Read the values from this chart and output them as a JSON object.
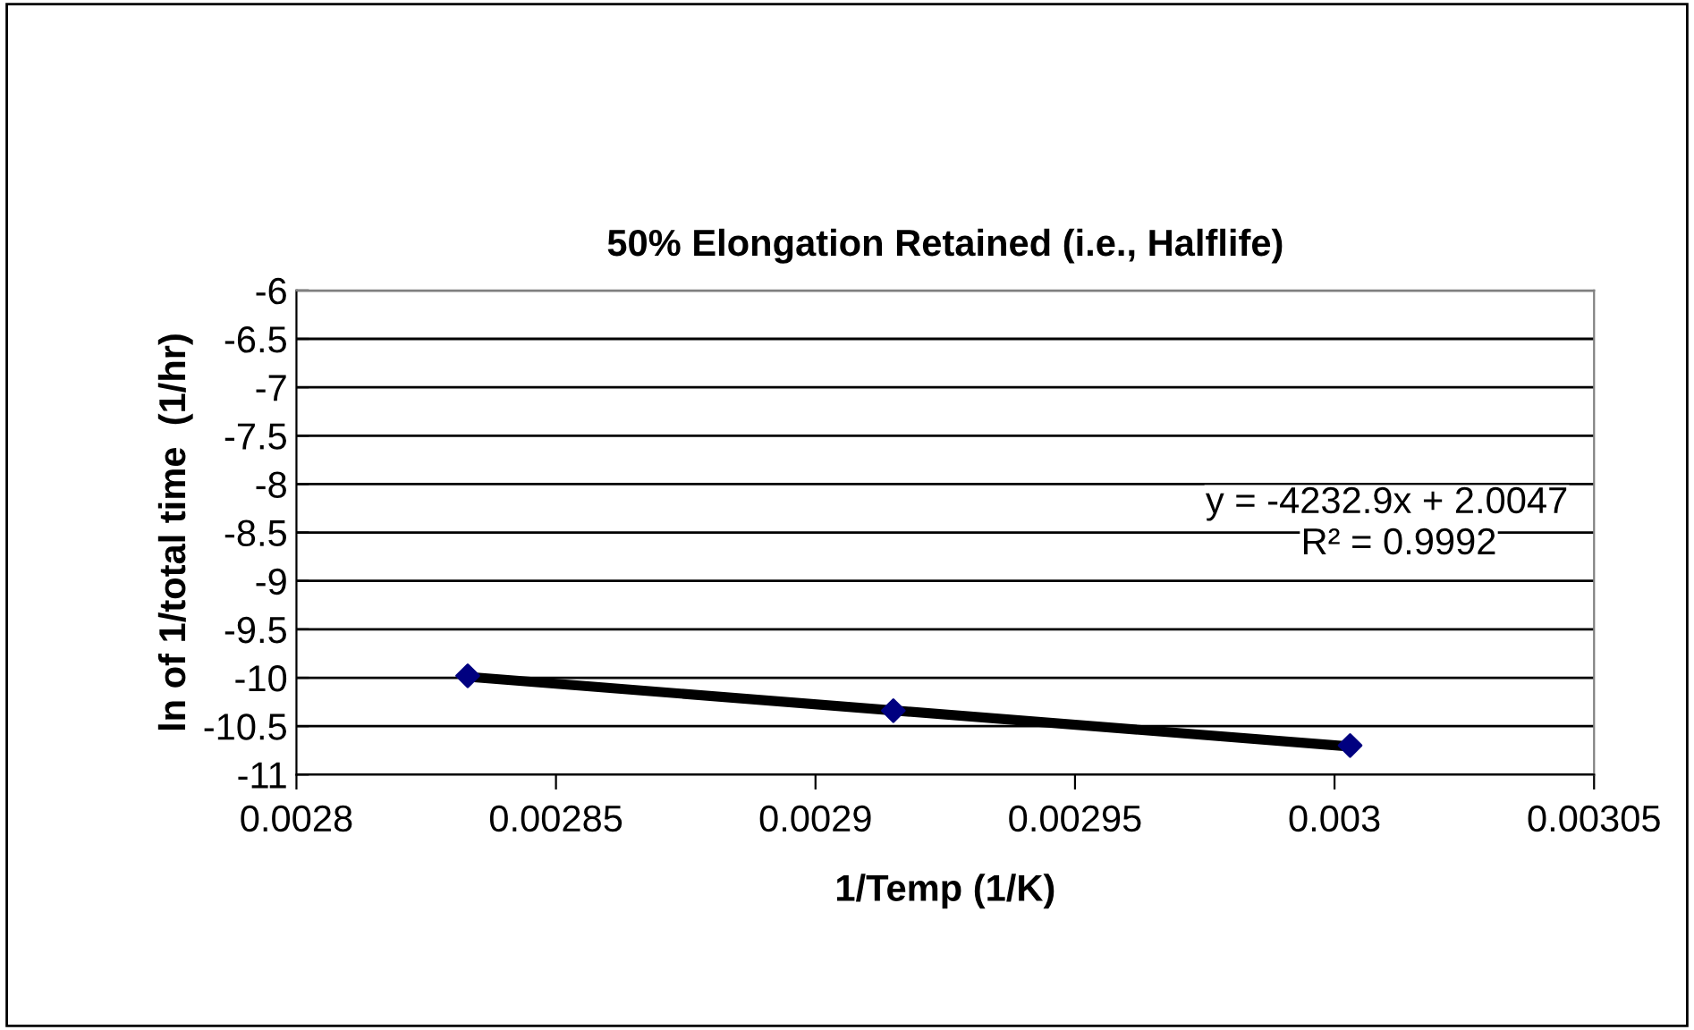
{
  "chart_data": {
    "type": "scatter",
    "title": "50% Elongation Retained (i.e., Halflife)",
    "xlabel": "1/Temp (1/K)",
    "ylabel": "ln of 1/total time  (1/hr)",
    "series": [
      {
        "color": "#000080",
        "x": [
          0.002833,
          0.002915,
          0.003003
        ],
        "values": [
          -9.98,
          -10.34,
          -10.7
        ],
        "marker": "diamond"
      },
      {
        "type": "line",
        "color": "#000000",
        "x": [
          0.002833,
          0.003003
        ],
        "values": [
          -9.99,
          -10.71
        ],
        "marker": "none",
        "line_style": "solid"
      }
    ],
    "annotations": [
      "y = -4232.9x + 2.0047",
      "R² = 0.9992"
    ],
    "xlim": [
      0.0028,
      0.00305
    ],
    "xticks": [
      0.0028,
      0.00285,
      0.0029,
      0.00295,
      0.003,
      0.00305
    ],
    "ylim": [
      -11,
      -6
    ],
    "yticks": [
      -11,
      -10.5,
      -10,
      -9.5,
      -9,
      -8.5,
      -8,
      -7.5,
      -7,
      -6.5,
      -6
    ],
    "grid": "y",
    "legend": false
  }
}
